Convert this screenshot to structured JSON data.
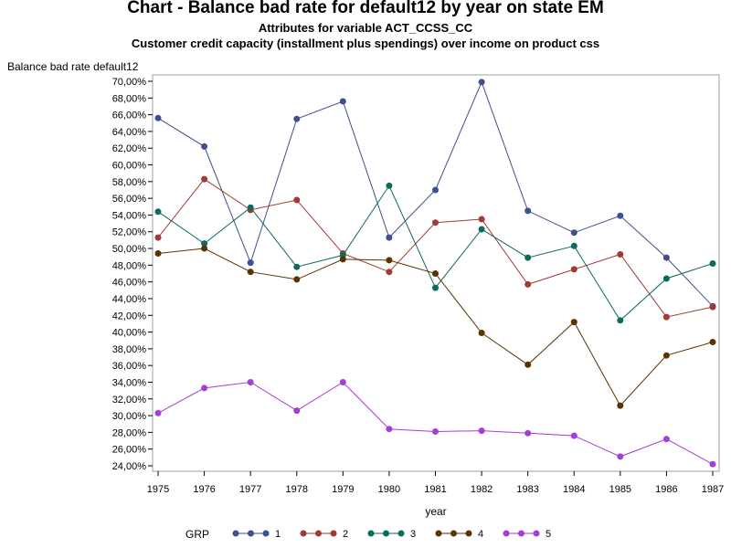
{
  "chart_data": {
    "type": "line",
    "title": "Chart - Balance bad rate for default12 by year on state EM",
    "subtitle": "Attributes for variable ACT_CCSS_CC",
    "subtitle2": "Customer credit capacity (installment plus spendings) over income on product css",
    "ylabel": "Balance bad rate default12",
    "xlabel": "year",
    "legend_title": "GRP",
    "legend_position": "bottom",
    "ylim": [
      24,
      70
    ],
    "yticks": [
      "24,00%",
      "26,00%",
      "28,00%",
      "30,00%",
      "32,00%",
      "34,00%",
      "36,00%",
      "38,00%",
      "40,00%",
      "42,00%",
      "44,00%",
      "46,00%",
      "48,00%",
      "50,00%",
      "52,00%",
      "54,00%",
      "56,00%",
      "58,00%",
      "60,00%",
      "62,00%",
      "64,00%",
      "66,00%",
      "68,00%",
      "70,00%"
    ],
    "x": [
      "1975",
      "1976",
      "1977",
      "1978",
      "1979",
      "1980",
      "1981",
      "1982",
      "1983",
      "1984",
      "1985",
      "1986",
      "1987"
    ],
    "grid": false,
    "series": [
      {
        "name": "1",
        "color": "#3f4f8f",
        "values": [
          65.6,
          62.2,
          48.3,
          65.5,
          67.6,
          51.3,
          57.0,
          69.9,
          54.5,
          51.9,
          53.9,
          48.9,
          43.1
        ]
      },
      {
        "name": "2",
        "color": "#a03a33",
        "values": [
          51.3,
          58.3,
          54.6,
          55.8,
          49.4,
          47.2,
          53.1,
          53.5,
          45.7,
          47.5,
          49.3,
          41.8,
          43.0
        ]
      },
      {
        "name": "3",
        "color": "#0d6b5c",
        "values": [
          54.4,
          50.6,
          54.9,
          47.8,
          49.2,
          57.5,
          45.3,
          52.3,
          48.9,
          50.3,
          41.4,
          46.4,
          48.2
        ]
      },
      {
        "name": "4",
        "color": "#5a3302",
        "values": [
          49.4,
          50.0,
          47.2,
          46.3,
          48.7,
          48.6,
          47.0,
          39.9,
          36.1,
          41.2,
          31.2,
          37.2,
          38.8
        ]
      },
      {
        "name": "5",
        "color": "#a43ed6",
        "values": [
          30.3,
          33.3,
          34.0,
          30.6,
          34.0,
          28.4,
          28.1,
          28.2,
          27.9,
          27.6,
          25.1,
          27.2,
          24.2
        ]
      }
    ]
  }
}
